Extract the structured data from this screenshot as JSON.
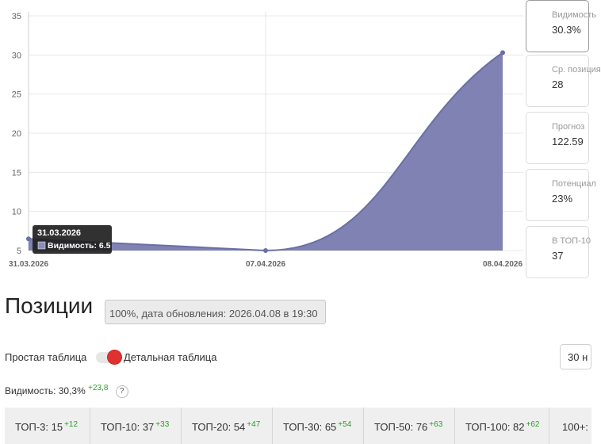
{
  "chart_data": {
    "type": "area",
    "x": [
      "31.03.2026",
      "07.04.2026",
      "08.04.2026"
    ],
    "values": [
      6.5,
      5.0,
      30.3
    ],
    "ylim": [
      5,
      35
    ],
    "yticks": [
      "5",
      "10",
      "15",
      "20",
      "25",
      "30",
      "35"
    ],
    "grid": true,
    "color": "#6b6fa5",
    "tooltip": {
      "date": "31.03.2026",
      "series": "Видимость",
      "value": "6.5"
    }
  },
  "tooltip_text": "Видимость: 6.5",
  "side_cards": [
    {
      "label": "Видимость",
      "value": "30.3%"
    },
    {
      "label": "Ср. позиция",
      "value": "28"
    },
    {
      "label": "Прогноз",
      "value": "122.59"
    },
    {
      "label": "Потенциал",
      "value": "23%"
    },
    {
      "label": "В ТОП-10",
      "value": "37"
    }
  ],
  "positions": {
    "title": "Позиции",
    "update": "100%, дата обновления: 2026.04.08 в 19:30"
  },
  "toggle": {
    "simple": "Простая таблица",
    "detailed": "Детальная таблица"
  },
  "period": "30 н",
  "visibility": {
    "label": "Видимость: 30,3%",
    "delta": "+23,8",
    "help": "?"
  },
  "top_stats": [
    {
      "label": "ТОП-3: 15",
      "delta": "+12"
    },
    {
      "label": "ТОП-10: 37",
      "delta": "+33"
    },
    {
      "label": "ТОП-20: 54",
      "delta": "+47"
    },
    {
      "label": "ТОП-30: 65",
      "delta": "+54"
    },
    {
      "label": "ТОП-50: 76",
      "delta": "+63"
    },
    {
      "label": "ТОП-100: 82",
      "delta": "+62"
    },
    {
      "label": "100+:",
      "delta": ""
    }
  ]
}
